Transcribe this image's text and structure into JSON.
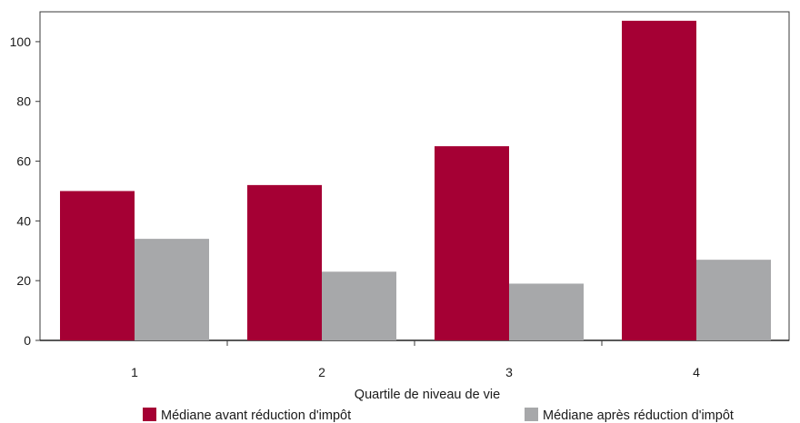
{
  "chart_data": {
    "type": "bar",
    "title": "",
    "xlabel": "Quartile de niveau de vie",
    "ylabel": "",
    "categories": [
      "1",
      "2",
      "3",
      "4"
    ],
    "series": [
      {
        "name": "Médiane avant réduction d'impôt",
        "values": [
          50,
          52,
          65,
          107
        ],
        "color": "#a50034"
      },
      {
        "name": "Médiane après réduction d'impôt",
        "values": [
          34,
          23,
          19,
          27
        ],
        "color": "#a7a8aa"
      }
    ],
    "ylim": [
      0,
      110
    ],
    "yticks": [
      0,
      20,
      40,
      60,
      80,
      100
    ],
    "grid": false,
    "legend_position": "bottom"
  }
}
